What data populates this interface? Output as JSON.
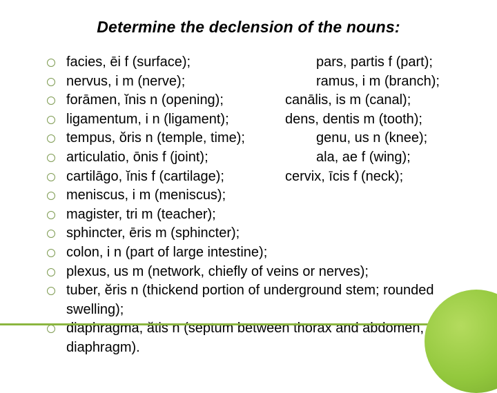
{
  "title": "Determine the declension of the nouns:",
  "items": {
    "i0a": "facies, ēi f (surface);",
    "i0b": "pars, partis f (part);",
    "i1a": "nervus, i m (nerve);",
    "i1b": "ramus, i m (branch);",
    "i2a": "forāmen, ĭnis n (opening);",
    "i2b": "canālis, is m (canal);",
    "i3a": "ligamentum, i n (ligament);",
    "i3b": "dens, dentis m (tooth);",
    "i4a": "tempus, ŏris n (temple, time);",
    "i4b": "genu, us n (knee);",
    "i5a": "articulatio, ōnis f (joint);",
    "i5b": "ala, ae f (wing);",
    "i6a": "cartilāgo, ĭnis f (cartilage);",
    "i6b": "cervix, īcis f (neck);",
    "i7": "meniscus, i m (meniscus);",
    "i8": "magister, tri  m (teacher);",
    "i9": "sphincter, ēris  m (sphincter);",
    "i10": "colon, i  n (part of large intestine);",
    "i11": "plexus, us m (network, chiefly of veins or nerves);",
    "i12": "tuber, ĕris n (thickend portion of underground stem; rounded swelling);",
    "i13": "diaphragma, ătis n (septum between thorax and abdomen, diaphragm)."
  },
  "style": {
    "accent_color": "#8bb63f",
    "bullet_border": "#7e9b52",
    "text_color": "#000000",
    "background": "#ffffff",
    "title_fontsize": 23,
    "body_fontsize": 20
  }
}
